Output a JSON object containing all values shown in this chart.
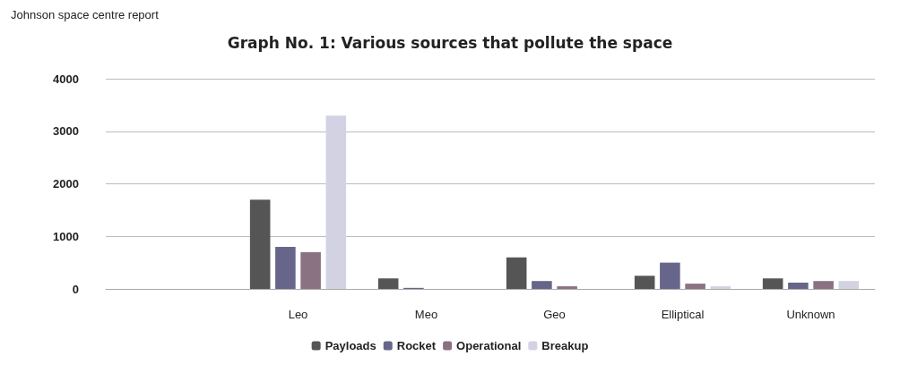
{
  "chart_data": {
    "type": "bar",
    "title": "Graph No. 1: Various sources that pollute the space",
    "annotations": [
      "Johnson space centre report"
    ],
    "categories": [
      null,
      "Leo",
      "Meo",
      "Geo",
      "Elliptical",
      "Unknown"
    ],
    "series": [
      {
        "name": "Payloads",
        "color": "#555555",
        "values": [
          null,
          1700,
          200,
          600,
          250,
          200
        ]
      },
      {
        "name": "Rocket",
        "color": "#67668a",
        "values": [
          null,
          800,
          20,
          150,
          500,
          120
        ]
      },
      {
        "name": "Operational",
        "color": "#8a7282",
        "values": [
          null,
          700,
          null,
          50,
          100,
          150
        ]
      },
      {
        "name": "Breakup",
        "color": "#d2d2e2",
        "values": [
          null,
          3300,
          null,
          null,
          50,
          150
        ]
      }
    ],
    "ylim": [
      0,
      4000
    ],
    "yticks": [
      0,
      1000,
      2000,
      3000,
      4000
    ],
    "grid": "y",
    "legend": "bottom"
  }
}
